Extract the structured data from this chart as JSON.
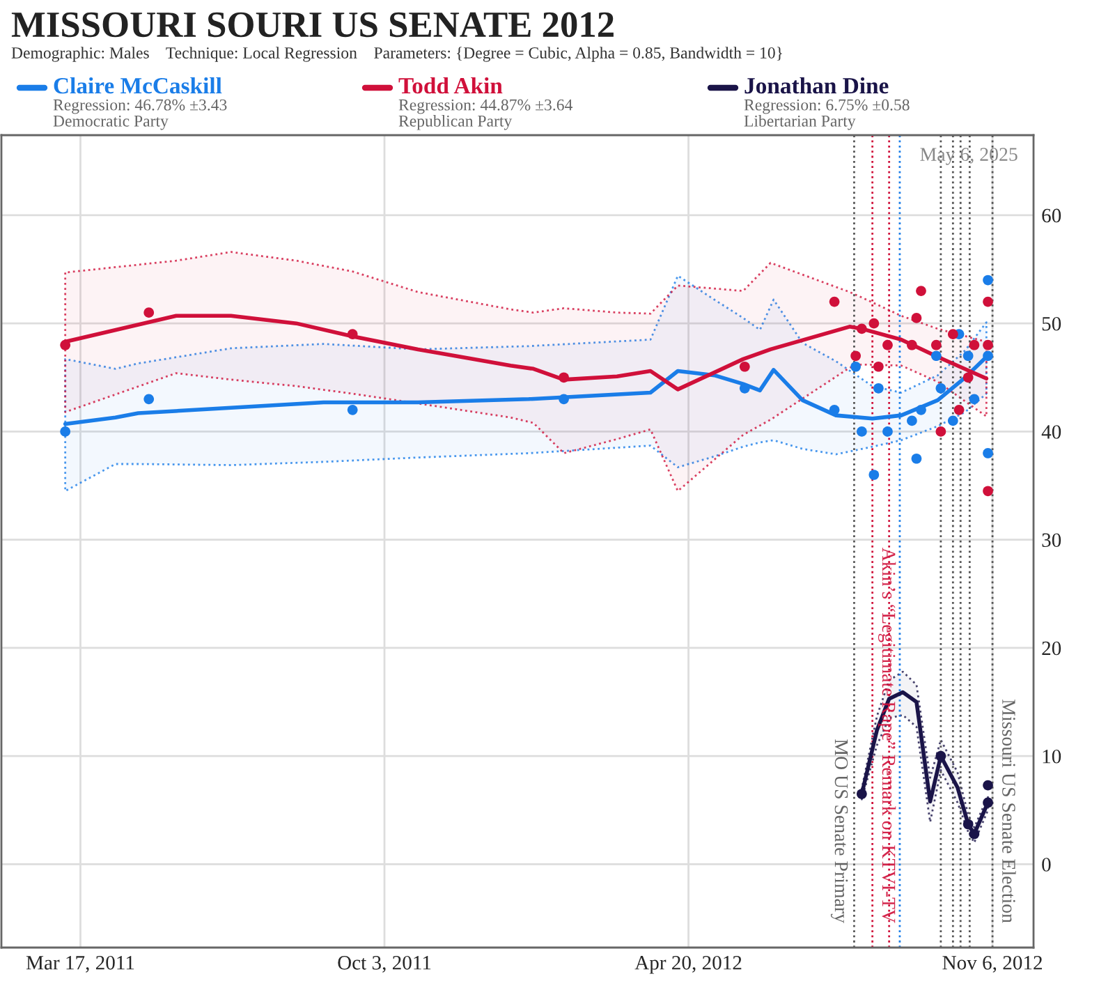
{
  "chart_data": {
    "type": "line",
    "title": "MISSOURI SOURI US SENATE 2012",
    "subtitle": "Demographic: Males    Technique: Local Regression    Parameters: {Degree = Cubic, Alpha = 0.85, Bandwidth = 10}",
    "annotations": [
      "Regression: 46.78% ±3.43\nDemocratic Party",
      "Regression: 44.87% ±3.64\nRepublican Party",
      "Regression: 6.75% ±0.58\nLibertarian Party",
      "May 6, 2025"
    ],
    "xlim": [
      "2011-01-24",
      "2012-12-03"
    ],
    "xticks": [
      {
        "value": "2011-03-17",
        "label": "Mar 17, 2011"
      },
      {
        "value": "2011-10-03",
        "label": "Oct 3, 2011"
      },
      {
        "value": "2012-04-20",
        "label": "Apr 20, 2012"
      },
      {
        "value": "2012-11-06",
        "label": "Nov 6, 2012"
      }
    ],
    "ylim": [
      -7.7,
      67.4
    ],
    "yticks": [
      0,
      10,
      20,
      30,
      40,
      50,
      60
    ],
    "grid": true,
    "legend": "top",
    "series": [
      {
        "name": "Claire McCaskill",
        "line_style": "solid",
        "color": "#1a7de8",
        "x": [
          "2011-03-07",
          "2011-04-09",
          "2011-04-24",
          "2011-06-24",
          "2011-08-24",
          "2011-10-25",
          "2012-01-06",
          "2012-03-26",
          "2012-04-13",
          "2012-05-07",
          "2012-05-26",
          "2012-06-06",
          "2012-06-15",
          "2012-07-04",
          "2012-07-26",
          "2012-08-19",
          "2012-09-07",
          "2012-10-01",
          "2012-10-19",
          "2012-11-02"
        ],
        "values": [
          40.7,
          41.3,
          41.7,
          42.2,
          42.7,
          42.7,
          43.0,
          43.6,
          45.6,
          45.2,
          44.4,
          43.8,
          45.7,
          42.9,
          41.5,
          41.2,
          41.5,
          42.9,
          45.0,
          46.9
        ],
        "upper": [
          46.7,
          45.8,
          46.3,
          47.7,
          48.1,
          47.6,
          47.9,
          48.5,
          54.4,
          52.2,
          50.5,
          49.4,
          52.2,
          48.2,
          46.5,
          44.2,
          43.6,
          45.2,
          47.5,
          50.1
        ],
        "lower": [
          34.5,
          37.0,
          37.0,
          36.9,
          37.2,
          37.6,
          38.0,
          38.7,
          36.7,
          37.7,
          38.6,
          39.0,
          39.2,
          38.4,
          37.9,
          38.6,
          39.2,
          40.5,
          41.8,
          43.5
        ]
      },
      {
        "name": "Todd Akin",
        "line_style": "solid",
        "color": "#d0103a",
        "x": [
          "2011-03-07",
          "2011-05-19",
          "2011-06-24",
          "2011-08-06",
          "2011-09-12",
          "2011-10-25",
          "2011-12-25",
          "2012-01-09",
          "2012-01-29",
          "2012-03-04",
          "2012-03-26",
          "2012-04-13",
          "2012-05-26",
          "2012-06-13",
          "2012-08-04",
          "2012-08-12",
          "2012-09-07",
          "2012-10-01",
          "2012-11-02"
        ],
        "values": [
          48.3,
          50.7,
          50.7,
          50.0,
          48.8,
          47.6,
          46.1,
          45.8,
          44.8,
          45.1,
          45.6,
          43.9,
          46.7,
          47.6,
          49.7,
          49.5,
          48.5,
          46.9,
          44.9
        ],
        "upper": [
          54.7,
          55.8,
          56.6,
          55.8,
          54.8,
          52.9,
          51.3,
          51.0,
          51.4,
          51.0,
          50.9,
          53.5,
          53.0,
          55.6,
          52.9,
          52.4,
          50.7,
          49.5,
          48.3
        ],
        "lower": [
          41.8,
          45.4,
          44.8,
          44.2,
          43.5,
          42.6,
          41.3,
          40.8,
          38.0,
          39.3,
          40.2,
          34.5,
          39.7,
          41.1,
          45.9,
          46.2,
          46.1,
          44.6,
          41.4
        ]
      },
      {
        "name": "Jonathan Dine",
        "line_style": "solid",
        "color": "#1a1448",
        "x": [
          "2012-08-12",
          "2012-08-22",
          "2012-08-30",
          "2012-09-08",
          "2012-09-17",
          "2012-09-26",
          "2012-10-03",
          "2012-10-14",
          "2012-10-21",
          "2012-10-25",
          "2012-11-03"
        ],
        "values": [
          6.5,
          12.4,
          15.3,
          15.9,
          15.0,
          5.8,
          10.0,
          7.1,
          3.7,
          2.8,
          5.7
        ],
        "upper": [
          7.0,
          13.7,
          17.0,
          17.8,
          16.6,
          8.0,
          11.5,
          8.5,
          4.6,
          3.4,
          6.3
        ],
        "lower": [
          6.0,
          11.0,
          13.5,
          13.8,
          12.7,
          3.9,
          8.7,
          5.7,
          3.0,
          2.0,
          5.0
        ]
      },
      {
        "type": "scatter",
        "marker": "circle",
        "color": "#1a7de8",
        "x": [
          "2011-03-07",
          "2011-05-01",
          "2011-09-12",
          "2012-01-29",
          "2012-05-27",
          "2012-07-25",
          "2012-08-08",
          "2012-08-12",
          "2012-08-20",
          "2012-08-23",
          "2012-08-29",
          "2012-09-14",
          "2012-09-17",
          "2012-09-20",
          "2012-09-30",
          "2012-10-03",
          "2012-10-11",
          "2012-10-15",
          "2012-10-21",
          "2012-10-25",
          "2012-11-03",
          "2012-11-03",
          "2012-11-03"
        ],
        "values": [
          40,
          43,
          42,
          43,
          44,
          42,
          46,
          40,
          36,
          44,
          40,
          41,
          37.5,
          42,
          47,
          44,
          41,
          49,
          47,
          43,
          54,
          47,
          38
        ]
      },
      {
        "type": "scatter",
        "marker": "circle",
        "color": "#d0103a",
        "x": [
          "2011-03-07",
          "2011-05-01",
          "2011-09-12",
          "2012-01-29",
          "2012-05-27",
          "2012-07-25",
          "2012-08-08",
          "2012-08-12",
          "2012-08-20",
          "2012-08-23",
          "2012-08-29",
          "2012-09-14",
          "2012-09-17",
          "2012-09-20",
          "2012-09-30",
          "2012-10-03",
          "2012-10-11",
          "2012-10-15",
          "2012-10-21",
          "2012-10-25",
          "2012-11-03",
          "2012-11-03",
          "2012-11-03"
        ],
        "values": [
          48,
          51,
          49,
          45,
          46,
          52,
          47,
          49.5,
          50,
          46,
          48,
          48,
          50.5,
          53,
          48,
          40,
          49,
          42,
          45,
          48,
          52,
          48,
          34.5
        ]
      },
      {
        "type": "scatter",
        "marker": "circle",
        "color": "#1a1448",
        "x": [
          "2012-08-12",
          "2012-10-03",
          "2012-10-21",
          "2012-10-25",
          "2012-11-03",
          "2012-11-03"
        ],
        "values": [
          6.5,
          10,
          3.7,
          2.8,
          7.3,
          5.7
        ]
      }
    ],
    "ref_lines": [
      {
        "axis": "x",
        "value": "2012-08-07",
        "label": "MO US Senate Primary",
        "color": "#555555",
        "line_style": "dotted"
      },
      {
        "axis": "x",
        "value": "2012-08-19",
        "label": "Akin’s “Legitimate Rape” Remark on KTVI-TV",
        "color": "#d0103a",
        "line_style": "dotted"
      },
      {
        "axis": "x",
        "value": "2012-08-30",
        "color": "#d0103a",
        "line_style": "dotted"
      },
      {
        "axis": "x",
        "value": "2012-09-06",
        "color": "#1a7de8",
        "line_style": "dotted"
      },
      {
        "axis": "x",
        "value": "2012-10-03",
        "color": "#555555",
        "line_style": "dotted"
      },
      {
        "axis": "x",
        "value": "2012-10-11",
        "color": "#555555",
        "line_style": "dotted"
      },
      {
        "axis": "x",
        "value": "2012-10-16",
        "color": "#555555",
        "line_style": "dotted"
      },
      {
        "axis": "x",
        "value": "2012-10-22",
        "color": "#555555",
        "line_style": "dotted"
      },
      {
        "axis": "x",
        "value": "2012-11-06",
        "label": "Missouri US Senate Election",
        "color": "#555555",
        "line_style": "dotted"
      }
    ]
  }
}
